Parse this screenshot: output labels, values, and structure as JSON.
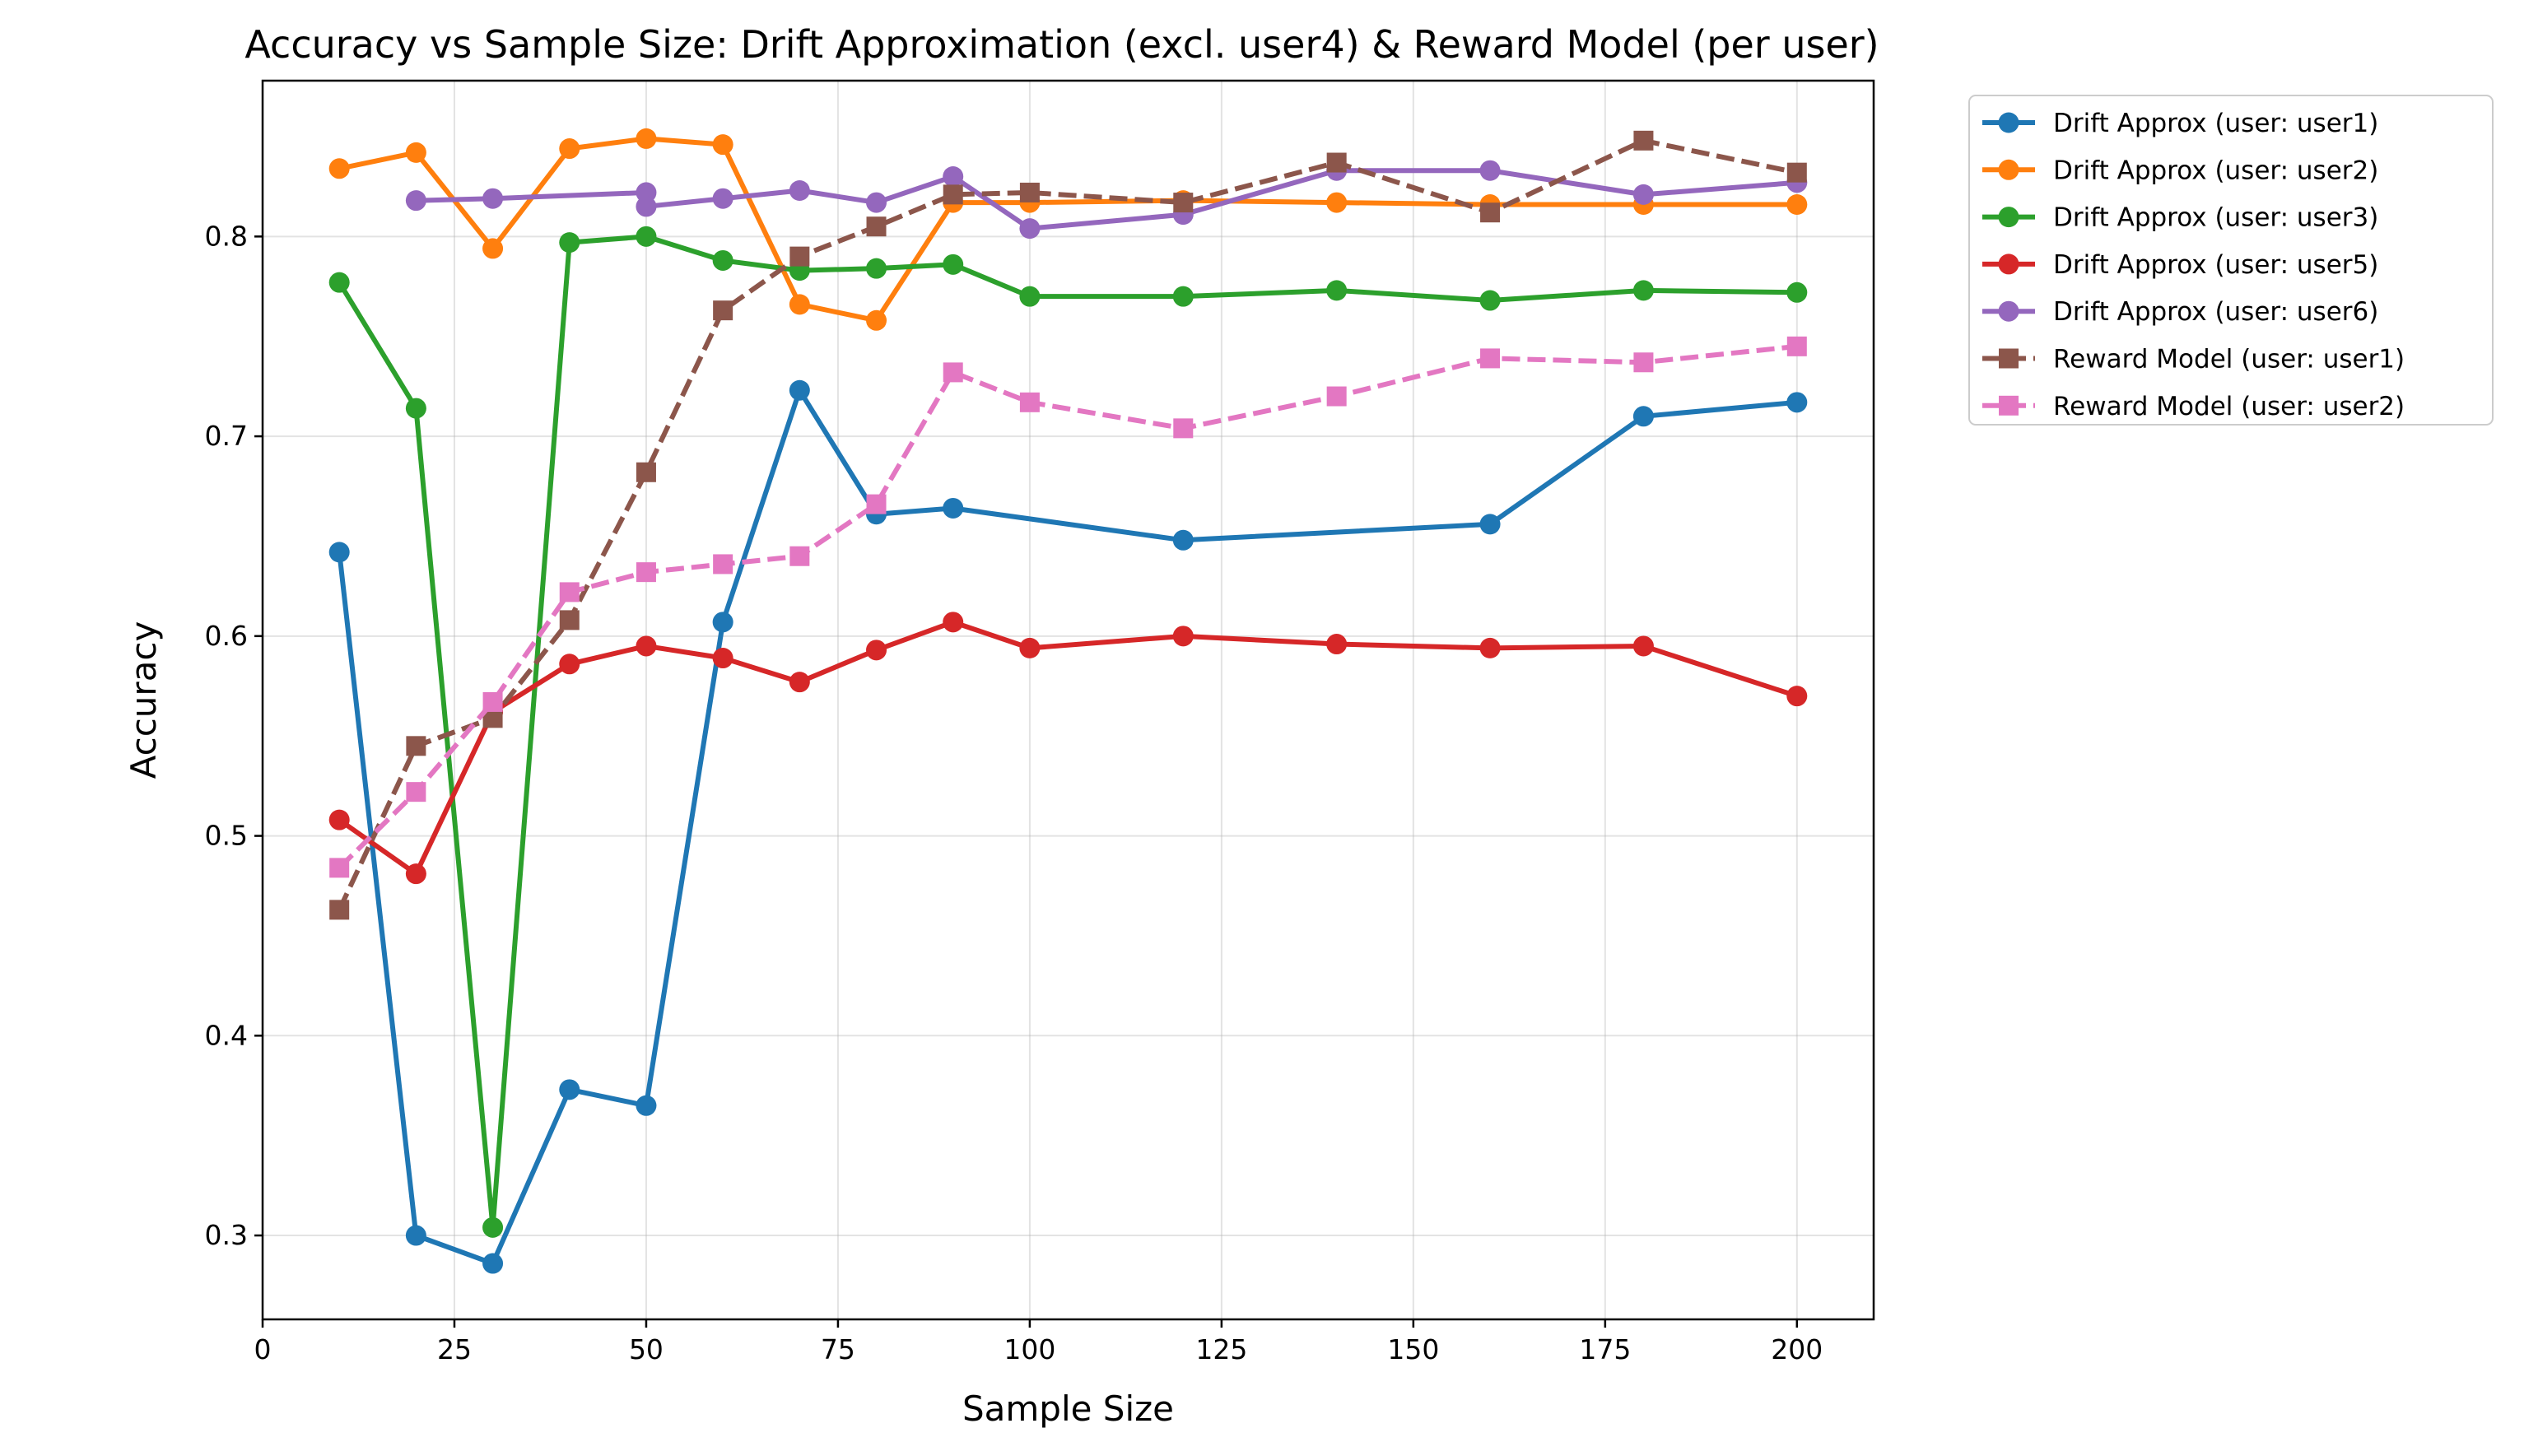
{
  "chart_data": {
    "type": "line",
    "title": "Accuracy vs Sample Size: Drift Approximation (excl. user4) & Reward Model (per user)",
    "xlabel": "Sample Size",
    "ylabel": "Accuracy",
    "xlim": [
      0,
      210
    ],
    "ylim": [
      0.258,
      0.878
    ],
    "xticks": [
      0,
      25,
      50,
      75,
      100,
      125,
      150,
      175,
      200
    ],
    "xtick_labels": [
      "0",
      "25",
      "50",
      "75",
      "100",
      "125",
      "150",
      "175",
      "200"
    ],
    "yticks": [
      0.3,
      0.4,
      0.5,
      0.6,
      0.7,
      0.8
    ],
    "ytick_labels": [
      "0.3",
      "0.4",
      "0.5",
      "0.6",
      "0.7",
      "0.8"
    ],
    "grid": true,
    "legend_position": "outside-top-right",
    "series": [
      {
        "name": "Drift Approx (user: user1)",
        "color": "#1f77b4",
        "marker": "circle",
        "dash": "solid",
        "x": [
          10,
          20,
          30,
          40,
          50,
          60,
          70,
          80,
          90,
          120,
          160,
          180,
          200
        ],
        "y": [
          0.642,
          0.3,
          0.286,
          0.373,
          0.365,
          0.607,
          0.723,
          0.661,
          0.664,
          0.648,
          0.656,
          0.71,
          0.717
        ]
      },
      {
        "name": "Drift Approx (user: user2)",
        "color": "#ff7f0e",
        "marker": "circle",
        "dash": "solid",
        "x": [
          10,
          20,
          30,
          40,
          50,
          60,
          70,
          80,
          90,
          100,
          120,
          140,
          160,
          180,
          200
        ],
        "y": [
          0.834,
          0.842,
          0.794,
          0.844,
          0.849,
          0.846,
          0.766,
          0.758,
          0.817,
          0.817,
          0.818,
          0.817,
          0.816,
          0.816,
          0.816
        ]
      },
      {
        "name": "Drift Approx (user: user3)",
        "color": "#2ca02c",
        "marker": "circle",
        "dash": "solid",
        "x": [
          10,
          20,
          30,
          40,
          50,
          60,
          70,
          80,
          90,
          100,
          120,
          140,
          160,
          180,
          200
        ],
        "y": [
          0.777,
          0.714,
          0.304,
          0.797,
          0.8,
          0.788,
          0.783,
          0.784,
          0.786,
          0.77,
          0.77,
          0.773,
          0.768,
          0.773,
          0.772
        ]
      },
      {
        "name": "Drift Approx (user: user5)",
        "color": "#d62728",
        "marker": "circle",
        "dash": "solid",
        "x": [
          10,
          20,
          30,
          40,
          50,
          60,
          70,
          80,
          90,
          100,
          120,
          140,
          160,
          180,
          200
        ],
        "y": [
          0.508,
          0.481,
          0.562,
          0.586,
          0.595,
          0.589,
          0.577,
          0.593,
          0.607,
          0.594,
          0.6,
          0.596,
          0.594,
          0.595,
          0.57
        ]
      },
      {
        "name": "Drift Approx (user: user6)",
        "color": "#9467bd",
        "marker": "circle",
        "dash": "solid",
        "x": [
          20,
          30,
          50,
          50,
          60,
          70,
          80,
          90,
          100,
          120,
          140,
          160,
          180,
          200
        ],
        "y": [
          0.818,
          0.819,
          0.822,
          0.815,
          0.819,
          0.823,
          0.817,
          0.83,
          0.804,
          0.811,
          0.833,
          0.833,
          0.821,
          0.827
        ]
      },
      {
        "name": "Reward Model (user: user1)",
        "color": "#8c564b",
        "marker": "square",
        "dash": "dashed",
        "x": [
          10,
          20,
          30,
          40,
          50,
          60,
          70,
          80,
          90,
          100,
          120,
          140,
          160,
          180,
          200
        ],
        "y": [
          0.463,
          0.545,
          0.559,
          0.608,
          0.682,
          0.763,
          0.79,
          0.805,
          0.821,
          0.822,
          0.817,
          0.837,
          0.812,
          0.848,
          0.832
        ]
      },
      {
        "name": "Reward Model (user: user2)",
        "color": "#e377c2",
        "marker": "square",
        "dash": "dashed",
        "x": [
          10,
          20,
          30,
          40,
          50,
          60,
          70,
          80,
          90,
          100,
          120,
          140,
          160,
          180,
          200
        ],
        "y": [
          0.484,
          0.522,
          0.567,
          0.622,
          0.632,
          0.636,
          0.64,
          0.666,
          0.732,
          0.717,
          0.704,
          0.72,
          0.739,
          0.737,
          0.745
        ]
      }
    ]
  }
}
